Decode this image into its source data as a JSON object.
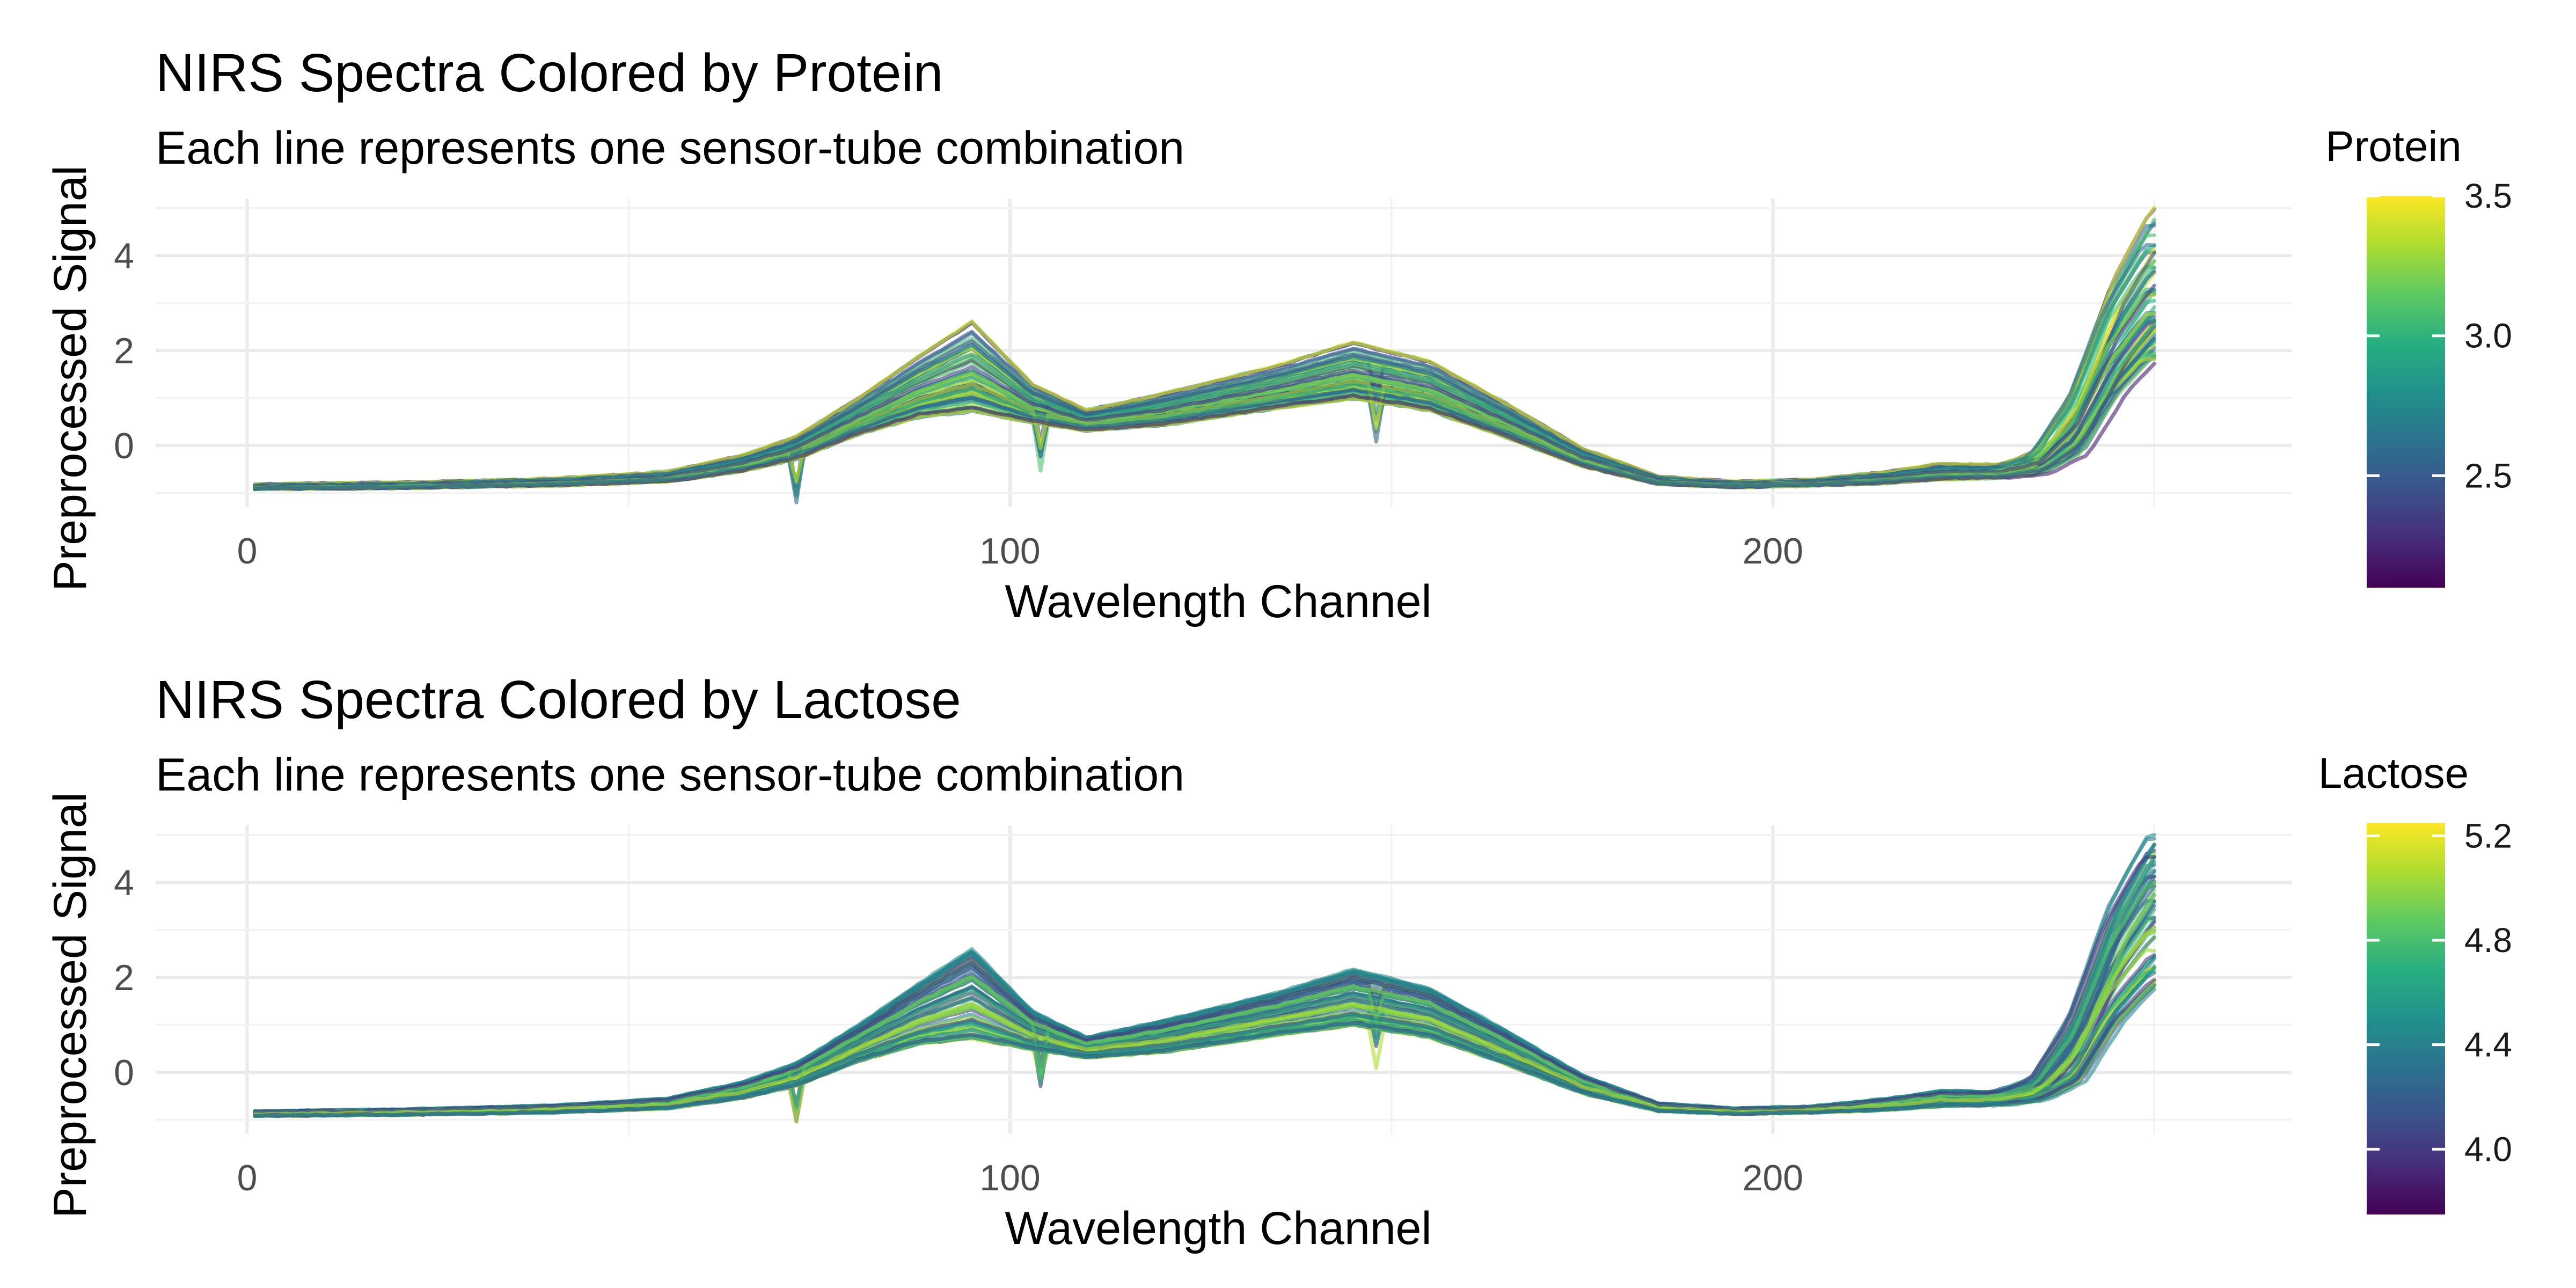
{
  "chart_data": [
    {
      "type": "line",
      "title": "NIRS Spectra Colored by Protein",
      "subtitle": "Each line represents one sensor-tube combination",
      "xlabel": "Wavelength Channel",
      "ylabel": "Preprocessed Signal",
      "xlim": [
        -12,
        268
      ],
      "ylim": [
        -1.3,
        5.2
      ],
      "x_ticks": [
        0,
        100,
        200
      ],
      "y_ticks": [
        0,
        2,
        4
      ],
      "grid": true,
      "legend": {
        "title": "Protein",
        "position": "right",
        "colorscale": "viridis",
        "range": [
          2.1,
          3.5
        ],
        "ticks": [
          2.5,
          3.0,
          3.5
        ],
        "tick_labels": [
          "2.5",
          "3.0",
          "3.5"
        ]
      },
      "spike_channels": [
        72,
        104,
        148
      ],
      "line_count": 60,
      "envelope": {
        "x": [
          1,
          20,
          40,
          55,
          65,
          72,
          80,
          88,
          95,
          103,
          110,
          120,
          135,
          145,
          155,
          165,
          175,
          185,
          195,
          205,
          215,
          222,
          230,
          235,
          240,
          245,
          250
        ],
        "y_low": [
          -0.92,
          -0.9,
          -0.85,
          -0.77,
          -0.55,
          -0.3,
          0.2,
          0.55,
          0.65,
          0.45,
          0.3,
          0.4,
          0.75,
          0.95,
          0.7,
          0.15,
          -0.45,
          -0.82,
          -0.88,
          -0.85,
          -0.8,
          -0.72,
          -0.7,
          -0.62,
          -0.3,
          0.9,
          1.7
        ],
        "y_high": [
          -0.82,
          -0.78,
          -0.7,
          -0.55,
          -0.2,
          0.2,
          1.0,
          1.9,
          2.65,
          1.3,
          0.75,
          1.1,
          1.7,
          2.2,
          1.8,
          0.9,
          -0.05,
          -0.65,
          -0.76,
          -0.72,
          -0.55,
          -0.38,
          -0.4,
          -0.1,
          1.3,
          3.6,
          5.1
        ]
      }
    },
    {
      "type": "line",
      "title": "NIRS Spectra Colored by Lactose",
      "subtitle": "Each line represents one sensor-tube combination",
      "xlabel": "Wavelength Channel",
      "ylabel": "Preprocessed Signal",
      "xlim": [
        -12,
        268
      ],
      "ylim": [
        -1.3,
        5.2
      ],
      "x_ticks": [
        0,
        100,
        200
      ],
      "y_ticks": [
        0,
        2,
        4
      ],
      "grid": true,
      "legend": {
        "title": "Lactose",
        "position": "right",
        "colorscale": "viridis",
        "range": [
          3.75,
          5.25
        ],
        "ticks": [
          4.0,
          4.4,
          4.8,
          5.2
        ],
        "tick_labels": [
          "4.0",
          "4.4",
          "4.8",
          "5.2"
        ]
      },
      "spike_channels": [
        72,
        104,
        148
      ],
      "line_count": 60,
      "envelope": {
        "x": [
          1,
          20,
          40,
          55,
          65,
          72,
          80,
          88,
          95,
          103,
          110,
          120,
          135,
          145,
          155,
          165,
          175,
          185,
          195,
          205,
          215,
          222,
          230,
          235,
          240,
          245,
          250
        ],
        "y_low": [
          -0.92,
          -0.9,
          -0.85,
          -0.77,
          -0.55,
          -0.3,
          0.2,
          0.55,
          0.65,
          0.45,
          0.3,
          0.4,
          0.75,
          0.95,
          0.7,
          0.15,
          -0.45,
          -0.82,
          -0.88,
          -0.85,
          -0.8,
          -0.72,
          -0.7,
          -0.62,
          -0.3,
          0.9,
          1.7
        ],
        "y_high": [
          -0.82,
          -0.78,
          -0.7,
          -0.55,
          -0.2,
          0.2,
          1.0,
          1.9,
          2.65,
          1.3,
          0.75,
          1.1,
          1.7,
          2.2,
          1.8,
          0.9,
          -0.05,
          -0.65,
          -0.76,
          -0.72,
          -0.55,
          -0.38,
          -0.4,
          -0.1,
          1.3,
          3.6,
          5.1
        ]
      }
    }
  ]
}
